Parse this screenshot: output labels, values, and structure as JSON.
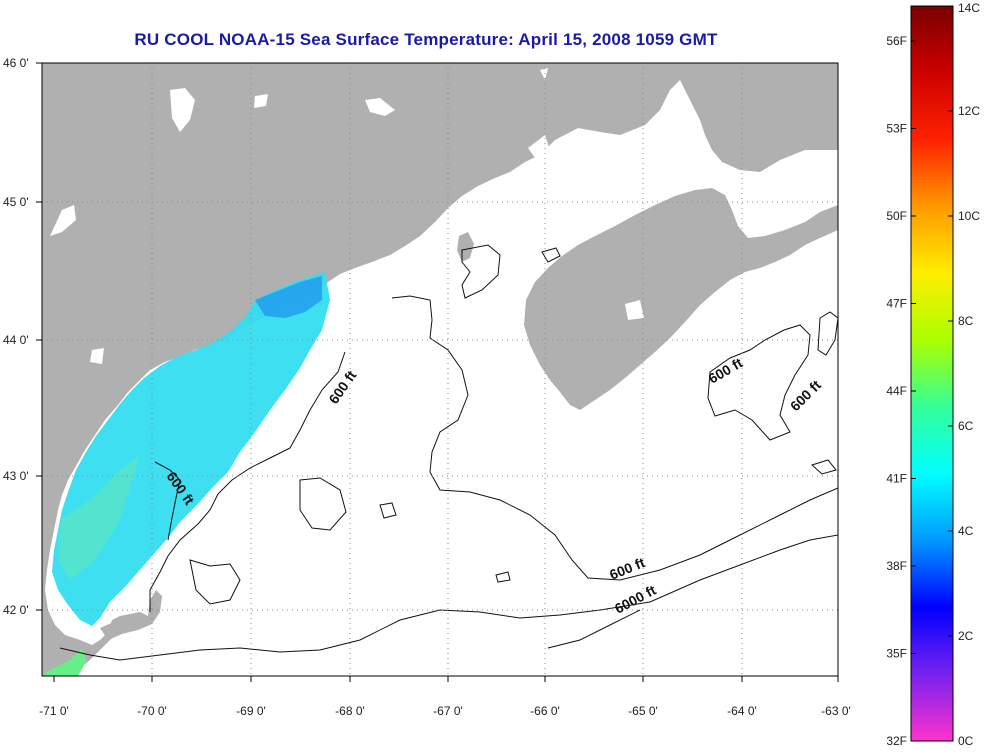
{
  "title": "RU COOL  NOAA-15  Sea Surface Temperature:  April 15, 2008 1059 GMT",
  "map": {
    "lat_labels": [
      "46 0'",
      "45 0'",
      "44 0'",
      "43 0'",
      "42 0'"
    ],
    "lon_labels": [
      "-71 0'",
      "-70 0'",
      "-69 0'",
      "-68 0'",
      "-67 0'",
      "-66 0'",
      "-65 0'",
      "-64 0'",
      "-63 0'"
    ],
    "contour_labels": [
      "600 ft",
      "600 ft",
      "600 ft",
      "600 ft",
      "600 ft",
      "6000 ft"
    ],
    "colors": {
      "land": "#b0b0b0",
      "ocean_no_data": "#ffffff",
      "sst_cyan": "#33ddf0",
      "sst_green": "#66ee88",
      "grid": "#888888"
    }
  },
  "colorbar": {
    "celsius_labels": [
      "14C",
      "12C",
      "10C",
      "8C",
      "6C",
      "4C",
      "2C",
      "0C"
    ],
    "fahrenheit_labels": [
      "56F",
      "53F",
      "50F",
      "47F",
      "44F",
      "41F",
      "38F",
      "35F",
      "32F"
    ],
    "range_c": [
      0,
      14
    ],
    "colors": [
      "#ff33cc",
      "#7722ee",
      "#0000ff",
      "#0099ff",
      "#00ffff",
      "#33ff99",
      "#aaff00",
      "#ffee00",
      "#ff9900",
      "#ff2200",
      "#cc0000",
      "#7a0000"
    ]
  }
}
